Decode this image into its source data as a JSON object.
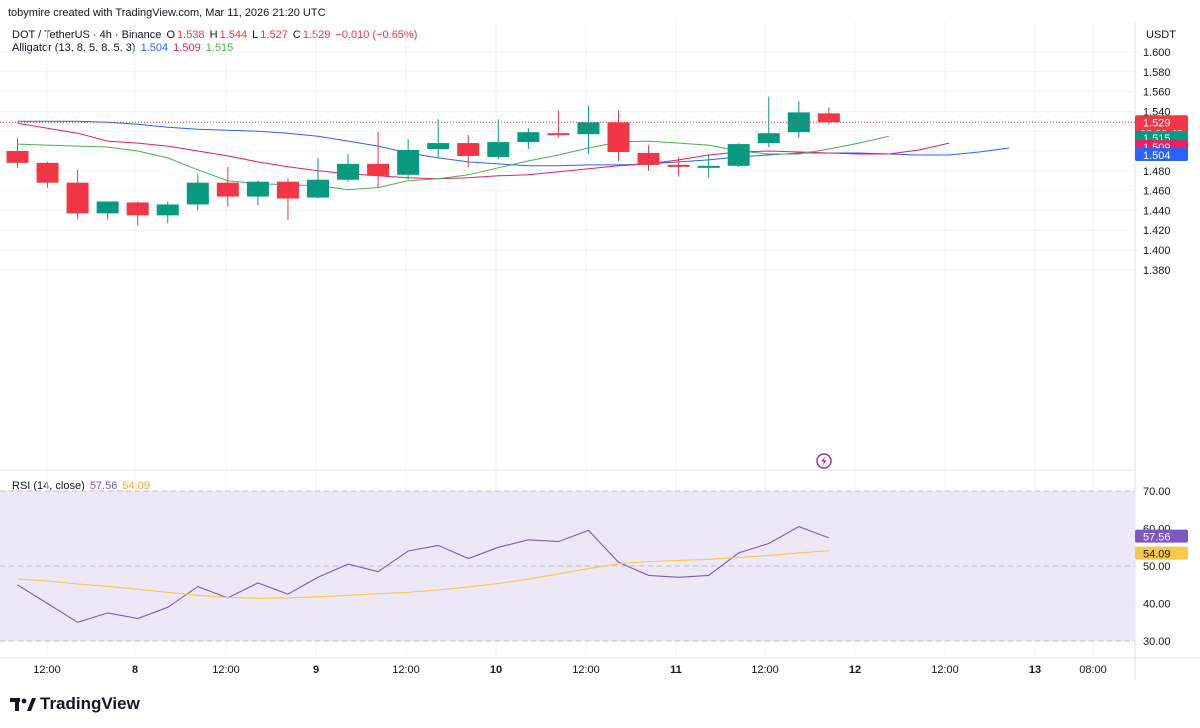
{
  "credit": "tobymire created with TradingView.com, Mar 11, 2026 21:20 UTC",
  "symbol": "DOT / TetherUS · 4h · Binance",
  "ohlc": {
    "o_label": "O",
    "o": "1.538",
    "h_label": "H",
    "h": "1.544",
    "l_label": "L",
    "l": "1.527",
    "c_label": "C",
    "c": "1.529",
    "change": "−0.010 (−0.65%)"
  },
  "alligator": {
    "label": "Alligator (13, 8, 5, 8, 5, 3)",
    "jaw": "1.504",
    "teeth": "1.509",
    "lips": "1.515"
  },
  "rsi_header": {
    "label": "RSI (14, close)",
    "rsi": "57.56",
    "ma": "54.09"
  },
  "unit": "USDT",
  "brand": "TradingView",
  "icons": {
    "flash": "lightning-icon",
    "logo": "tradingview-logo-icon"
  },
  "colors": {
    "up": "#089981",
    "down": "#f23645",
    "jaw": "#2962ff",
    "teeth": "#e91e63",
    "lips": "#4caf50",
    "rsi": "#7e57c2",
    "rsi_ma": "#f9c846",
    "rsi_band": "#ede7f6"
  },
  "chart_data": [
    {
      "type": "candlestick",
      "title": "DOT / TetherUS · 4h · Binance",
      "ylabel": "USDT",
      "ylim": [
        1.365,
        1.615
      ],
      "yticks": [
        "1.600",
        "1.580",
        "1.560",
        "1.540",
        "1.520",
        "1.500",
        "1.480",
        "1.460",
        "1.440",
        "1.420",
        "1.400",
        "1.380"
      ],
      "xticks": [
        "12:00",
        "8",
        "12:00",
        "9",
        "12:00",
        "10",
        "12:00",
        "11",
        "12:00",
        "12",
        "12:00",
        "13",
        "08:00"
      ],
      "candles": [
        {
          "o": 1.5,
          "h": 1.513,
          "l": 1.483,
          "c": 1.488
        },
        {
          "o": 1.488,
          "h": 1.489,
          "l": 1.463,
          "c": 1.468
        },
        {
          "o": 1.468,
          "h": 1.481,
          "l": 1.431,
          "c": 1.437
        },
        {
          "o": 1.437,
          "h": 1.449,
          "l": 1.431,
          "c": 1.449
        },
        {
          "o": 1.448,
          "h": 1.449,
          "l": 1.425,
          "c": 1.435
        },
        {
          "o": 1.435,
          "h": 1.449,
          "l": 1.427,
          "c": 1.446
        },
        {
          "o": 1.446,
          "h": 1.477,
          "l": 1.44,
          "c": 1.468
        },
        {
          "o": 1.468,
          "h": 1.484,
          "l": 1.444,
          "c": 1.454
        },
        {
          "o": 1.454,
          "h": 1.47,
          "l": 1.445,
          "c": 1.469
        },
        {
          "o": 1.469,
          "h": 1.472,
          "l": 1.43,
          "c": 1.452
        },
        {
          "o": 1.453,
          "h": 1.493,
          "l": 1.452,
          "c": 1.471
        },
        {
          "o": 1.471,
          "h": 1.497,
          "l": 1.469,
          "c": 1.487
        },
        {
          "o": 1.487,
          "h": 1.519,
          "l": 1.463,
          "c": 1.475
        },
        {
          "o": 1.476,
          "h": 1.512,
          "l": 1.471,
          "c": 1.501
        },
        {
          "o": 1.502,
          "h": 1.532,
          "l": 1.493,
          "c": 1.508
        },
        {
          "o": 1.508,
          "h": 1.516,
          "l": 1.484,
          "c": 1.495
        },
        {
          "o": 1.494,
          "h": 1.532,
          "l": 1.492,
          "c": 1.509
        },
        {
          "o": 1.509,
          "h": 1.523,
          "l": 1.502,
          "c": 1.519
        },
        {
          "o": 1.518,
          "h": 1.541,
          "l": 1.514,
          "c": 1.516
        },
        {
          "o": 1.517,
          "h": 1.546,
          "l": 1.497,
          "c": 1.529
        },
        {
          "o": 1.529,
          "h": 1.541,
          "l": 1.49,
          "c": 1.499
        },
        {
          "o": 1.498,
          "h": 1.506,
          "l": 1.48,
          "c": 1.486
        },
        {
          "o": 1.486,
          "h": 1.494,
          "l": 1.474,
          "c": 1.484
        },
        {
          "o": 1.484,
          "h": 1.497,
          "l": 1.473,
          "c": 1.485
        },
        {
          "o": 1.485,
          "h": 1.508,
          "l": 1.484,
          "c": 1.507
        },
        {
          "o": 1.508,
          "h": 1.555,
          "l": 1.504,
          "c": 1.518
        },
        {
          "o": 1.519,
          "h": 1.55,
          "l": 1.513,
          "c": 1.539
        },
        {
          "o": 1.538,
          "h": 1.544,
          "l": 1.527,
          "c": 1.529
        }
      ],
      "series": [
        {
          "name": "Jaw",
          "values": [
            1.53,
            1.53,
            1.53,
            1.529,
            1.527,
            1.524,
            1.522,
            1.521,
            1.52,
            1.518,
            1.515,
            1.51,
            1.505,
            1.498,
            1.493,
            1.489,
            1.487,
            1.485,
            1.485,
            1.486,
            1.486,
            1.487,
            1.489,
            1.491,
            1.494,
            1.496,
            1.498,
            1.498,
            1.498,
            1.497,
            1.496,
            1.496,
            1.499,
            1.503
          ]
        },
        {
          "name": "Teeth",
          "values": [
            1.528,
            1.523,
            1.518,
            1.51,
            1.508,
            1.505,
            1.5,
            1.495,
            1.489,
            1.484,
            1.48,
            1.477,
            1.475,
            1.473,
            1.472,
            1.473,
            1.475,
            1.476,
            1.479,
            1.482,
            1.485,
            1.487,
            1.491,
            1.496,
            1.499,
            1.5,
            1.499,
            1.498,
            1.497,
            1.497,
            1.501,
            1.508
          ]
        },
        {
          "name": "Lips",
          "values": [
            1.507,
            1.506,
            1.505,
            1.504,
            1.5,
            1.493,
            1.481,
            1.47,
            1.467,
            1.466,
            1.465,
            1.461,
            1.463,
            1.47,
            1.472,
            1.476,
            1.483,
            1.49,
            1.496,
            1.503,
            1.509,
            1.51,
            1.508,
            1.506,
            1.5,
            1.497,
            1.497,
            1.502,
            1.508,
            1.515
          ]
        }
      ],
      "last_price": "1.529",
      "countdown": "02:39:43"
    },
    {
      "type": "line",
      "title": "RSI (14, close)",
      "ylim": [
        27,
        73
      ],
      "yticks": [
        "70.00",
        "60.00",
        "50.00",
        "40.00",
        "30.00"
      ],
      "bands": [
        70,
        50,
        30
      ],
      "series": [
        {
          "name": "RSI",
          "values": [
            45,
            40,
            35,
            37.5,
            36,
            39,
            44.5,
            41.5,
            45.5,
            42.5,
            47,
            50.5,
            48.5,
            54,
            55.5,
            52,
            55,
            57,
            56.5,
            59.5,
            51,
            47.5,
            47,
            47.5,
            53.5,
            56,
            60.5,
            57.5
          ]
        },
        {
          "name": "RSI-based MA",
          "values": [
            46.5,
            46,
            45.2,
            44.6,
            43.8,
            43,
            42.2,
            41.6,
            41.4,
            41.5,
            41.8,
            42.2,
            42.6,
            43,
            43.6,
            44.4,
            45.3,
            46.5,
            47.9,
            49.3,
            50.6,
            51.2,
            51.5,
            51.8,
            52.3,
            52.8,
            53.5,
            54.09
          ]
        }
      ],
      "values_shown": {
        "rsi": "57.56",
        "ma": "54.09"
      }
    }
  ]
}
